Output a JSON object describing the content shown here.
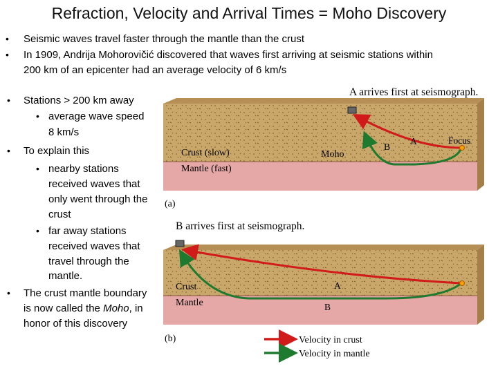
{
  "slide": {
    "title": "Refraction, Velocity and Arrival Times = Moho Discovery"
  },
  "bullets": [
    "Seismic waves travel faster through the mantle than the crust",
    "In 1909, Andrija Mohorovičić discovered that waves first arriving at seismic stations within",
    "200 km of an epicenter had an average velocity of 6 km/s"
  ],
  "list": {
    "stations": "Stations > 200 km away",
    "wave_speed_1": "average wave speed",
    "wave_speed_2": "8 km/s",
    "explain": "To explain this",
    "nearby": [
      "nearby stations",
      "received waves that",
      "only went through the",
      "crust"
    ],
    "faraway": [
      "far away stations",
      "received waves that",
      "travel through the",
      "mantle."
    ],
    "moho": [
      "The crust mantle boundary",
      "is now called the",
      "Moho",
      ", in",
      "honor of this discovery"
    ]
  },
  "diagram_a": {
    "heading": "A arrives first at seismograph.",
    "crust": "Crust (slow)",
    "mantle": "Mantle (fast)",
    "moho": "Moho",
    "focus": "Focus",
    "ray_a": "A",
    "ray_b": "B",
    "caption": "(a)"
  },
  "diagram_b": {
    "heading": "B arrives first at seismograph.",
    "crust": "Crust",
    "mantle": "Mantle",
    "ray_a": "A",
    "ray_b": "B",
    "caption": "(b)"
  },
  "legend": {
    "crust": "Velocity in crust",
    "mantle": "Velocity in mantle"
  },
  "colors": {
    "crust": "#c9a76a",
    "mantle": "#e6a7a7",
    "crust_ray": "#d11a1a",
    "mantle_ray": "#1e7a2e"
  }
}
